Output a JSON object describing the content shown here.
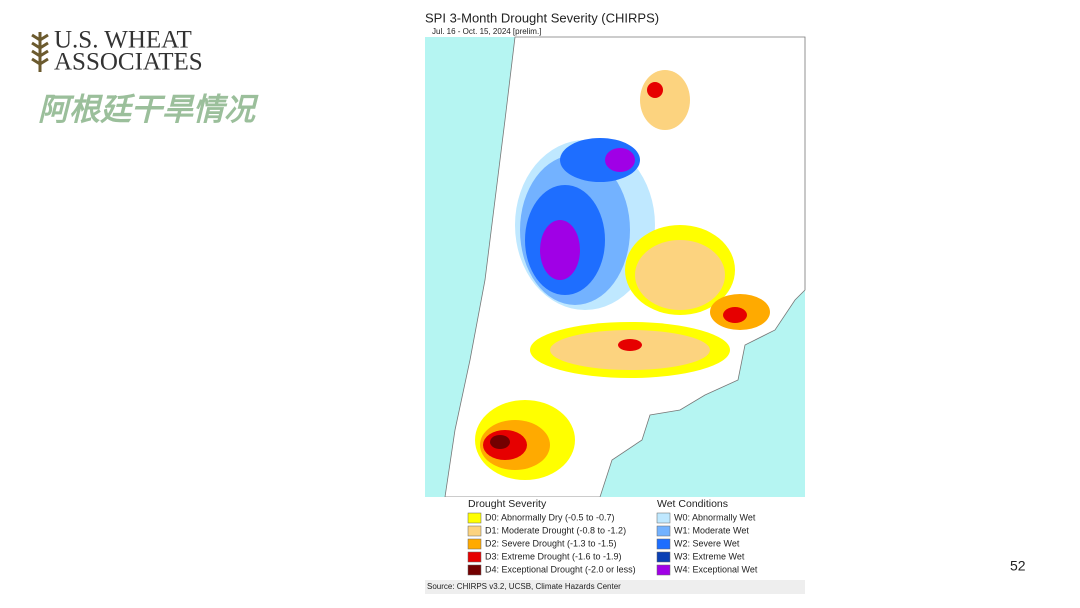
{
  "logo": {
    "line1": "U.S. WHEAT",
    "line2": "ASSOCIATES"
  },
  "slide_title": "阿根廷干旱情况",
  "map": {
    "title": "SPI 3-Month Drought Severity (CHIRPS)",
    "subtitle": "Jul. 16 - Oct. 15, 2024 [prelim.]",
    "source": "Source: CHIRPS v3.2, UCSB, Climate Hazards Center"
  },
  "legend": {
    "drought_heading": "Drought Severity",
    "drought": [
      {
        "label": "D0: Abnormally Dry (-0.5 to -0.7)",
        "color": "#ffff00"
      },
      {
        "label": "D1: Moderate Drought (-0.8 to -1.2)",
        "color": "#fcd37f"
      },
      {
        "label": "D2: Severe Drought (-1.3 to -1.5)",
        "color": "#ffaa00"
      },
      {
        "label": "D3: Extreme Drought (-1.6 to -1.9)",
        "color": "#e60000"
      },
      {
        "label": "D4: Exceptional Drought (-2.0 or less)",
        "color": "#730000"
      }
    ],
    "wet_heading": "Wet Conditions",
    "wet": [
      {
        "label": "W0: Abnormally Wet",
        "color": "#bfe8ff"
      },
      {
        "label": "W1: Moderate Wet",
        "color": "#73b2ff"
      },
      {
        "label": "W2: Severe Wet",
        "color": "#1e6eff"
      },
      {
        "label": "W3: Extreme Wet",
        "color": "#0a3fb4"
      },
      {
        "label": "W4: Exceptional Wet",
        "color": "#a000e6"
      }
    ]
  },
  "page_number": "52"
}
